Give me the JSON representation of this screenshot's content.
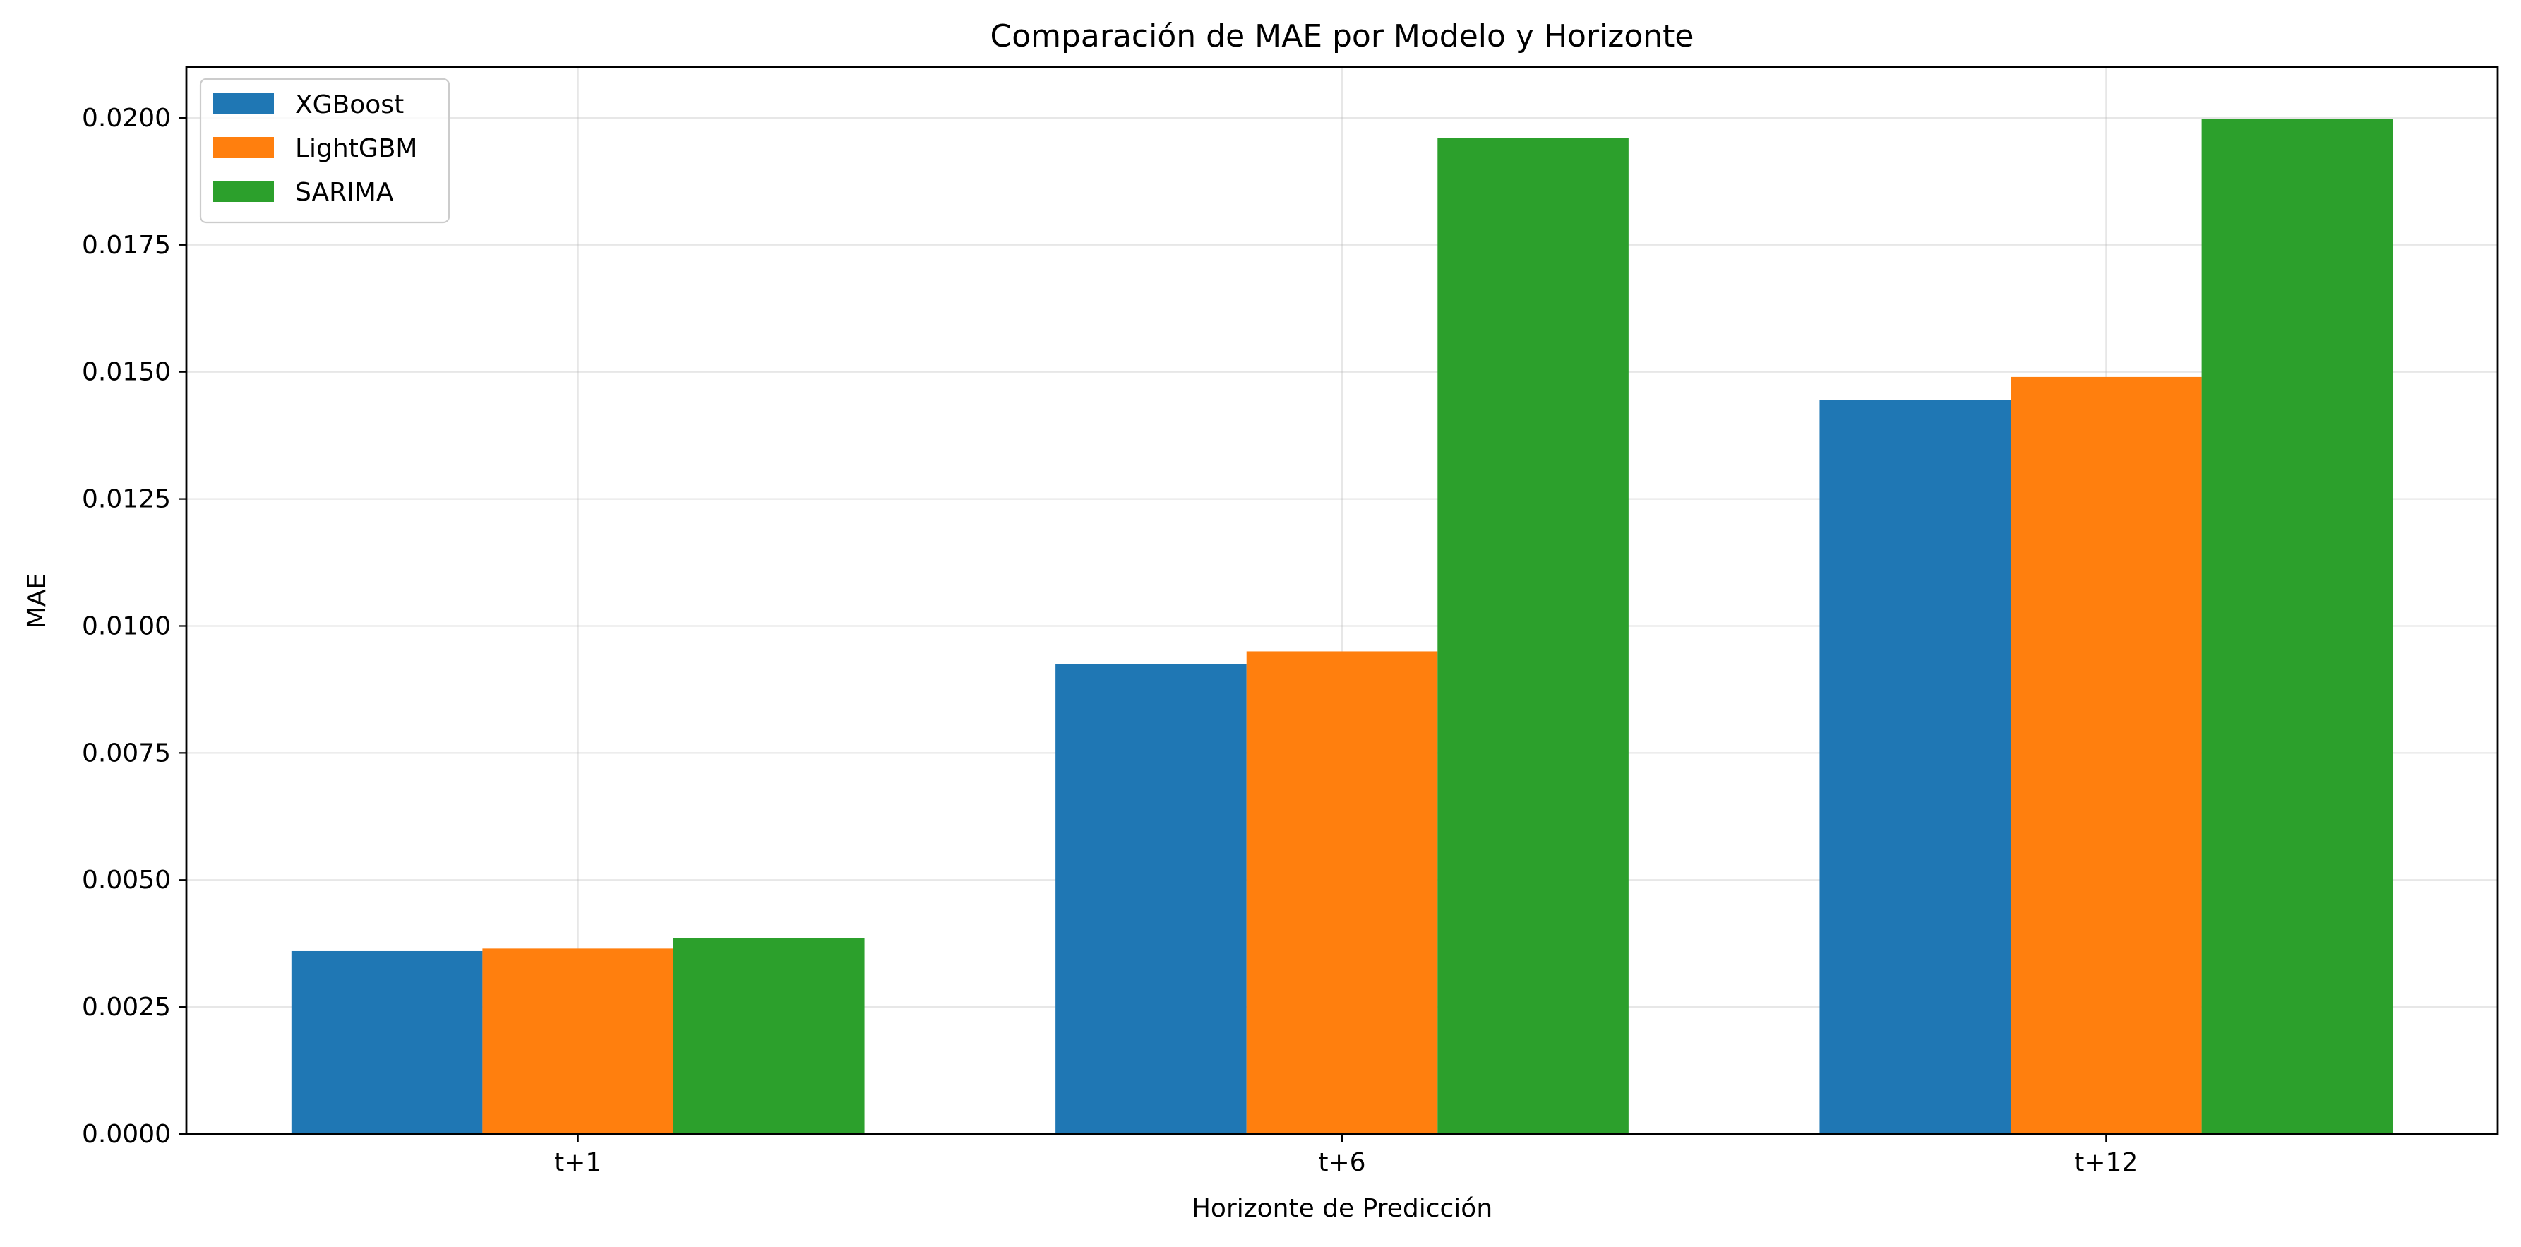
{
  "chart_data": {
    "type": "bar",
    "title": "Comparación de MAE por Modelo y Horizonte",
    "xlabel": "Horizonte de Predicción",
    "ylabel": "MAE",
    "categories": [
      "t+1",
      "t+6",
      "t+12"
    ],
    "series": [
      {
        "name": "XGBoost",
        "color": "#1f77b4",
        "values": [
          0.0036,
          0.00925,
          0.01445
        ]
      },
      {
        "name": "LightGBM",
        "color": "#ff7f0e",
        "values": [
          0.00365,
          0.0095,
          0.0149
        ]
      },
      {
        "name": "SARIMA",
        "color": "#2ca02c",
        "values": [
          0.00385,
          0.0196,
          0.01998
        ]
      }
    ],
    "ylim": [
      0,
      0.021
    ],
    "yticks": [
      "0.0000",
      "0.0025",
      "0.0050",
      "0.0075",
      "0.0100",
      "0.0125",
      "0.0150",
      "0.0175",
      "0.0200"
    ],
    "grid": true,
    "legend_position": "top-left"
  }
}
